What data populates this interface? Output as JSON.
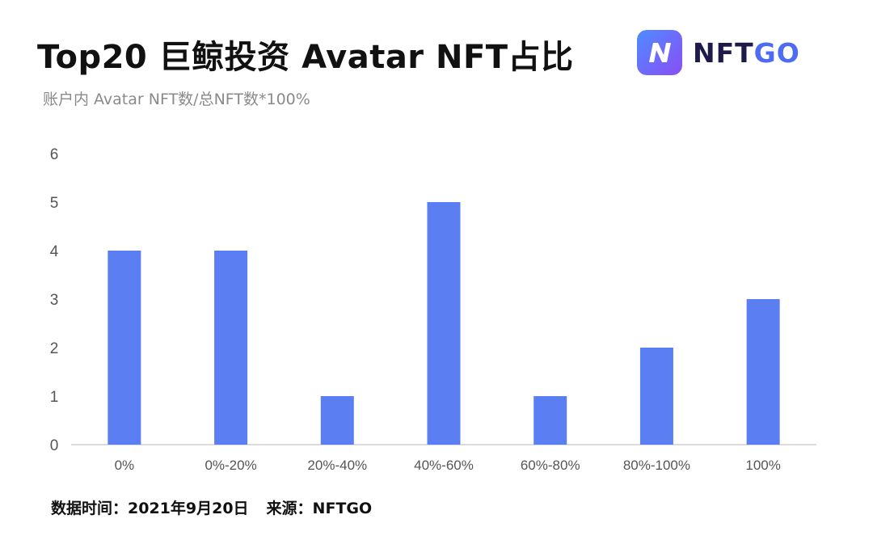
{
  "header": {
    "title": "Top20 巨鲸投资 Avatar NFT占比",
    "subtitle": "账户内 Avatar NFT数/总NFT数*100%"
  },
  "logo": {
    "text_part1": "NFT",
    "text_part2": "GO",
    "mark_letter": "N",
    "colors": {
      "text_part1": "#1e1b4b",
      "text_part2": "#4f6bf5",
      "mark_start": "#4e8cff",
      "mark_end": "#8a4df6"
    }
  },
  "footer": {
    "date_text": "数据时间：2021年9月20日",
    "source_text": "来源：NFTGO"
  },
  "colors": {
    "bar": "#5b7ff2",
    "axis_text": "#555555",
    "baseline": "#d0d0d0"
  },
  "chart_data": {
    "type": "bar",
    "title": "Top20 巨鲸投资 Avatar NFT占比",
    "subtitle": "账户内 Avatar NFT数/总NFT数*100%",
    "categories": [
      "0%",
      "0%-20%",
      "20%-40%",
      "40%-60%",
      "60%-80%",
      "80%-100%",
      "100%"
    ],
    "values": [
      4,
      4,
      1,
      5,
      1,
      2,
      3
    ],
    "yticks": [
      "0",
      "1",
      "2",
      "3",
      "4",
      "5",
      "6"
    ],
    "ylim": [
      0,
      6
    ],
    "grid": false,
    "legend": "none"
  }
}
